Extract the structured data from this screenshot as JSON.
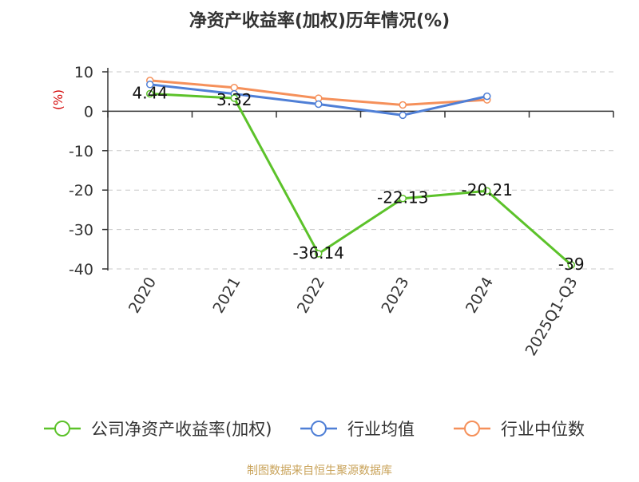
{
  "chart_data": {
    "type": "line",
    "title": "净资产收益率(加权)历年情况(%)",
    "ylabel": "(%)",
    "categories": [
      "2020",
      "2021",
      "2022",
      "2023",
      "2024",
      "2025Q1-Q3"
    ],
    "y_ticks": [
      "10",
      "0",
      "-10",
      "-20",
      "-30",
      "-40"
    ],
    "ylim": [
      -40,
      10
    ],
    "grid": true,
    "legend_position": "bottom",
    "series": [
      {
        "name": "公司净资产收益率(加权)",
        "color": "#5cc22a",
        "values": [
          4.44,
          3.32,
          -36.14,
          -22.13,
          -20.21,
          -39
        ],
        "labels": [
          "4.44",
          "3.32",
          "-36.14",
          "-22.13",
          "-20.21",
          "-39"
        ]
      },
      {
        "name": "行业均值",
        "color": "#4f7fd6",
        "values": [
          6.8,
          4.4,
          1.8,
          -1.0,
          3.8,
          null
        ],
        "labels": []
      },
      {
        "name": "行业中位数",
        "color": "#f5905a",
        "values": [
          7.8,
          6.0,
          3.3,
          1.6,
          2.9,
          null
        ],
        "labels": []
      }
    ]
  },
  "source_note": "制图数据来自恒生聚源数据库"
}
